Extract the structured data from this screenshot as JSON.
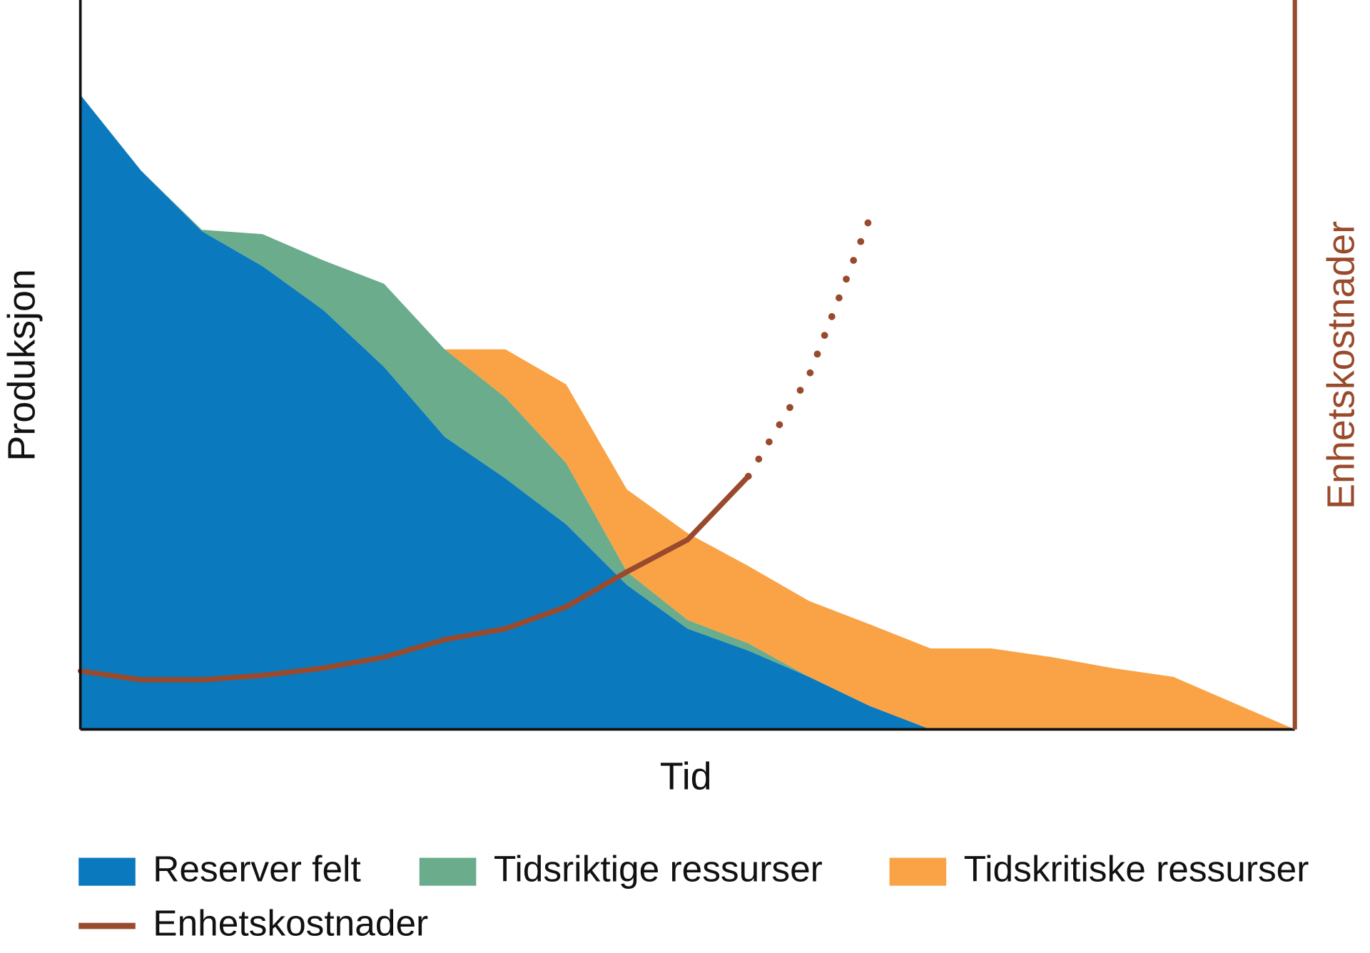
{
  "chart_data": {
    "type": "stacked-area",
    "x_label": "Tid",
    "y_label": "Produksjon",
    "y2_label": "Enhetskostnader",
    "x": [
      0,
      1,
      2,
      3,
      4,
      5,
      6,
      7,
      8,
      9,
      10,
      11,
      12,
      13,
      14,
      15,
      16,
      17,
      18,
      19,
      20
    ],
    "xlim": [
      0,
      20
    ],
    "ylim": [
      0,
      100
    ],
    "y2lim": [
      0,
      100
    ],
    "series": [
      {
        "name": "Reserver felt",
        "color": "#0a79bd",
        "values": [
          87,
          76.6,
          68.3,
          63.5,
          57.5,
          49.7,
          40.1,
          34.4,
          28.1,
          19.8,
          13.8,
          10.8,
          7.2,
          3.2,
          0,
          0,
          0,
          0,
          0,
          0,
          0
        ]
      },
      {
        "name": "Tidsriktige ressurser",
        "color": "#6aac8c",
        "values": [
          0,
          0,
          0.2,
          4.4,
          6.8,
          11.4,
          12,
          11.1,
          8.4,
          1.8,
          1.2,
          1,
          0,
          0,
          0,
          0,
          0,
          0,
          0,
          0,
          0
        ]
      },
      {
        "name": "Tidskritiske ressurser",
        "color": "#f9a346",
        "values": [
          0,
          0,
          0,
          0,
          0,
          0,
          0,
          6.6,
          10.8,
          11.3,
          11.9,
          10.6,
          10.4,
          11.2,
          11.1,
          11.1,
          9.9,
          8.4,
          7.2,
          3.6,
          0
        ]
      },
      {
        "name": "Enhetskostnader",
        "color": "#9a4a2c",
        "type": "line",
        "axis": "y2",
        "values": [
          8,
          6.8,
          6.8,
          7.4,
          8.4,
          9.9,
          12.3,
          13.8,
          16.8,
          21.6,
          26,
          34.7,
          null,
          null,
          null,
          null,
          null,
          null,
          null,
          null,
          null
        ],
        "projected_values": [
          null,
          null,
          null,
          null,
          null,
          null,
          null,
          null,
          null,
          null,
          null,
          34.7,
          48.5,
          70.1,
          null,
          null,
          null,
          null,
          null,
          null,
          null
        ]
      }
    ]
  }
}
